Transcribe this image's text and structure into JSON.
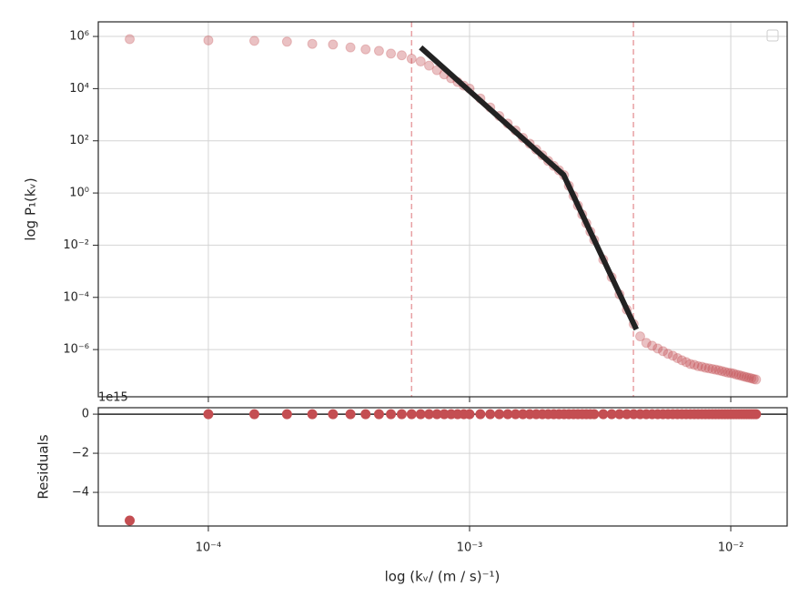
{
  "chart_data": [
    {
      "type": "scatter",
      "ylabel": "log P₁(kᵥ)",
      "color": "#c44e52",
      "x": [
        5e-05,
        0.0001,
        0.00015,
        0.0002,
        0.00025,
        0.0003,
        0.00035,
        0.0004,
        0.00045,
        0.0005,
        0.00055,
        0.0006,
        0.00065,
        0.0007,
        0.00075,
        0.0008,
        0.00085,
        0.0009,
        0.00095,
        0.001,
        0.0011,
        0.0012,
        0.0013,
        0.0014,
        0.0015,
        0.0016,
        0.0017,
        0.0018,
        0.0019,
        0.002,
        0.0021,
        0.0022,
        0.0023,
        0.0024,
        0.0025,
        0.0026,
        0.0027,
        0.0028,
        0.0029,
        0.003,
        0.00325,
        0.0035,
        0.00375,
        0.004,
        0.00425,
        0.0045,
        0.00475,
        0.005,
        0.00525,
        0.0055,
        0.00575,
        0.006,
        0.00625,
        0.0065,
        0.00675,
        0.007,
        0.00725,
        0.0075,
        0.00775,
        0.008,
        0.00825,
        0.0085,
        0.00875,
        0.009,
        0.00925,
        0.0095,
        0.00975,
        0.01,
        0.01025,
        0.0105,
        0.01075,
        0.011,
        0.01125,
        0.0115,
        0.01175,
        0.012,
        0.01225,
        0.0125
      ],
      "values": [
        790000.0,
        710000.0,
        680000.0,
        630000.0,
        520000.0,
        490000.0,
        380000.0,
        320000.0,
        280000.0,
        220000.0,
        190000.0,
        140000.0,
        110000.0,
        76000.0,
        51000.0,
        35000.0,
        25000.0,
        18000.0,
        13000.0,
        10000.0,
        4200,
        1900,
        890,
        460,
        250,
        130,
        78,
        46,
        28,
        17,
        11,
        7.4,
        4.8,
        1.9,
        0.78,
        0.33,
        0.15,
        0.069,
        0.033,
        0.016,
        0.0028,
        0.00059,
        0.00013,
        3.4e-05,
        9.5e-06,
        3.2e-06,
        1.8e-06,
        1.4e-06,
        1.1e-06,
        8.7e-07,
        6.9e-07,
        5.8e-07,
        4.7e-07,
        3.9e-07,
        3.3e-07,
        2.8e-07,
        2.6e-07,
        2.3e-07,
        2.2e-07,
        2e-07,
        1.9e-07,
        1.8e-07,
        1.7e-07,
        1.6e-07,
        1.5e-07,
        1.4e-07,
        1.3e-07,
        1.26e-07,
        1.2e-07,
        1.1e-07,
        1.05e-07,
        9.8e-08,
        9.3e-08,
        8.7e-08,
        8.3e-08,
        7.9e-08,
        7.4e-08,
        7.1e-08
      ],
      "fit": {
        "x": [
          0.00065,
          0.00229,
          0.00435
        ],
        "values": [
          380000.0,
          5.0,
          5.9e-06
        ],
        "color": "#222222"
      },
      "vlines": [
        0.0006,
        0.00424
      ],
      "vline_color": "#e8a0a3",
      "xlog": true,
      "ylog": true,
      "xlim": [
        3.79e-05,
        0.01644
      ],
      "ylim": [
        1.55e-08,
        3630000.0
      ],
      "xticks": [
        {
          "value": 0.0001,
          "label": "10⁻⁴"
        },
        {
          "value": 0.001,
          "label": "10⁻³"
        },
        {
          "value": 0.01,
          "label": "10⁻²"
        }
      ],
      "yticks": [
        {
          "value": 1000000.0,
          "label": "10⁶"
        },
        {
          "value": 10000.0,
          "label": "10⁴"
        },
        {
          "value": 100,
          "label": "10²"
        },
        {
          "value": 1,
          "label": "10⁰"
        },
        {
          "value": 0.01,
          "label": "10⁻²"
        },
        {
          "value": 0.0001,
          "label": "10⁻⁴"
        },
        {
          "value": 1e-06,
          "label": "10⁻⁶"
        }
      ],
      "grid": true
    },
    {
      "type": "scatter",
      "ylabel": "Residuals",
      "xlabel": "log (kᵥ/ (m / s)⁻¹)",
      "offset_label": "1e15",
      "color": "#c44e52",
      "values": [
        -5.44,
        0,
        0,
        0,
        0,
        0,
        0,
        0,
        0,
        0,
        0,
        0,
        0,
        0,
        0,
        0,
        0,
        0,
        0,
        0,
        0,
        0,
        0,
        0,
        0,
        0,
        0,
        0,
        0,
        0,
        0,
        0,
        0,
        0,
        0,
        0,
        0,
        0,
        0,
        0,
        0,
        0,
        0,
        0,
        0,
        0,
        0,
        0,
        0,
        0,
        0,
        0,
        0,
        0,
        0,
        0,
        0,
        0,
        0,
        0,
        0,
        0,
        0,
        0,
        0,
        0,
        0,
        0,
        0,
        0,
        0,
        0,
        0,
        0,
        0,
        0,
        0,
        0
      ],
      "hline": 0,
      "ylim": [
        -5.72,
        0.33
      ],
      "yticks": [
        0,
        {
          "value": -2,
          "label": "−2"
        },
        {
          "value": -4,
          "label": "−4"
        }
      ],
      "grid": true
    }
  ]
}
